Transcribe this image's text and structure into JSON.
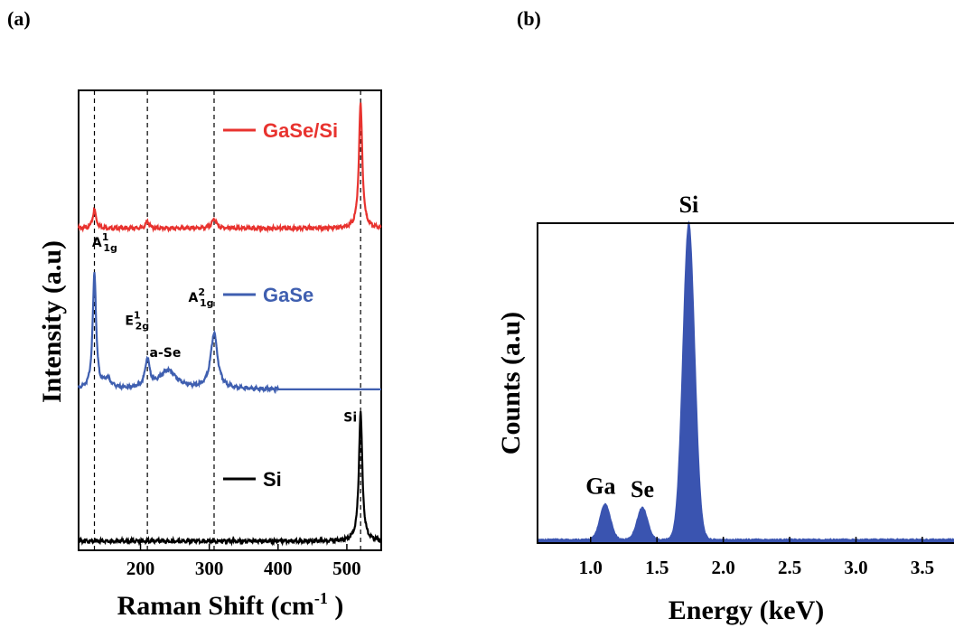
{
  "panels": {
    "a": "(a)",
    "b": "(b)"
  },
  "colors": {
    "gase_si": "#e8332f",
    "gase": "#3f5fb0",
    "si": "#000000",
    "eds_fill": "#3a54b0"
  },
  "chart_data": [
    {
      "type": "line",
      "panel": "(a)",
      "xlabel_main": "Raman Shift (cm",
      "xlabel_sup": "-1",
      "xlabel_end": " )",
      "ylabel": "Intensity (a.u)",
      "xlim": [
        110,
        550
      ],
      "ylim": [
        0,
        100
      ],
      "xticks": [
        200,
        300,
        400,
        500
      ],
      "xtick_labels": [
        "200",
        "300",
        "400",
        "500"
      ],
      "grid": false,
      "legend_position": "inline",
      "reference_lines_x": [
        133,
        210,
        307,
        520
      ],
      "series": [
        {
          "name": "GaSe/Si",
          "color": "#e8332f",
          "baseline": 70,
          "peaks": [
            {
              "x": 133,
              "height": 4,
              "width": 3
            },
            {
              "x": 210,
              "height": 1.5,
              "width": 3
            },
            {
              "x": 307,
              "height": 2,
              "width": 4
            },
            {
              "x": 520,
              "height": 27,
              "width": 3
            }
          ]
        },
        {
          "name": "GaSe",
          "color": "#3f5fb0",
          "baseline": 35,
          "end_x": 400,
          "end_baseline": 35,
          "peaks": [
            {
              "x": 133,
              "height": 25,
              "width": 3
            },
            {
              "x": 152,
              "height": 2,
              "width": 6
            },
            {
              "x": 210,
              "height": 6,
              "width": 4
            },
            {
              "x": 240,
              "height": 4,
              "width": 15
            },
            {
              "x": 307,
              "height": 12,
              "width": 6
            }
          ]
        },
        {
          "name": "Si",
          "color": "#000000",
          "baseline": 2,
          "peaks": [
            {
              "x": 520,
              "height": 28,
              "width": 3
            }
          ]
        }
      ],
      "annotations": [
        {
          "main": "A",
          "sup": "1",
          "sub": "1g",
          "x": 148,
          "y": 66
        },
        {
          "main": "E",
          "sup": "1",
          "sub": "2g",
          "x": 195,
          "y": 49
        },
        {
          "main": "A",
          "sup": "2",
          "sub": "1g",
          "x": 288,
          "y": 54
        },
        {
          "main": "a-Se",
          "sup": "",
          "sub": "",
          "x": 236,
          "y": 42
        },
        {
          "main": "Si",
          "sup": "",
          "sub": "",
          "x": 505,
          "y": 28
        }
      ]
    },
    {
      "type": "area",
      "panel": "(b)",
      "xlabel": "Energy (keV)",
      "ylabel": "Counts (a.u)",
      "xlim": [
        0.6,
        3.8
      ],
      "ylim": [
        0,
        100
      ],
      "xticks": [
        1.0,
        1.5,
        2.0,
        2.5,
        3.0,
        3.5
      ],
      "xtick_labels": [
        "1.0",
        "1.5",
        "2.0",
        "2.5",
        "3.0",
        "3.5"
      ],
      "grid": false,
      "color": "#3a54b0",
      "baseline": 1,
      "peaks": [
        {
          "x": 1.11,
          "height": 11,
          "width": 0.04,
          "label": "Ga"
        },
        {
          "x": 1.39,
          "height": 10,
          "width": 0.04,
          "label": "Se"
        },
        {
          "x": 1.74,
          "height": 99,
          "width": 0.045,
          "label": "Si"
        }
      ]
    }
  ]
}
